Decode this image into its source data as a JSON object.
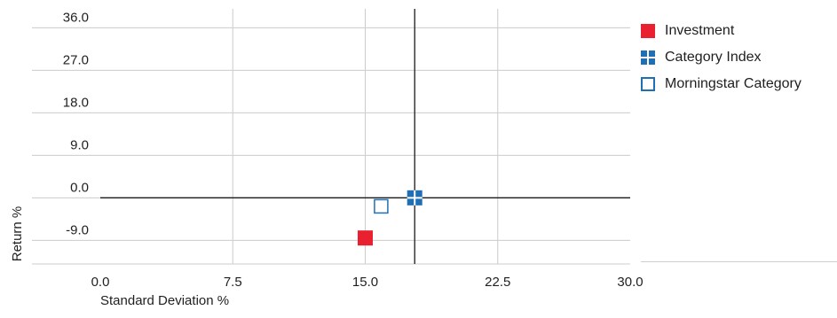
{
  "chart_data": {
    "type": "scatter",
    "title": "",
    "xlabel": "Standard Deviation %",
    "ylabel": "Return %",
    "xlim": [
      0.0,
      30.0
    ],
    "ylim": [
      -14.0,
      40.0
    ],
    "x_ticks": [
      "0.0",
      "7.5",
      "15.0",
      "22.5",
      "30.0"
    ],
    "x_tick_values": [
      0.0,
      7.5,
      15.0,
      22.5,
      30.0
    ],
    "y_ticks": [
      "36.0",
      "27.0",
      "18.0",
      "9.0",
      "0.0",
      "-9.0"
    ],
    "y_tick_values": [
      36.0,
      27.0,
      18.0,
      9.0,
      0.0,
      -9.0
    ],
    "grid": true,
    "crosshair": {
      "x": 17.8,
      "y": 0.0
    },
    "legend_position": "right",
    "series": [
      {
        "name": "Investment",
        "x": 15.0,
        "y": -8.5,
        "marker": "filled-square",
        "color": "#e8202f"
      },
      {
        "name": "Category Index",
        "x": 17.8,
        "y": 0.0,
        "marker": "quartered-square",
        "color": "#1f6fb5"
      },
      {
        "name": "Morningstar Category",
        "x": 15.9,
        "y": -1.8,
        "marker": "hollow-square",
        "color": "#1f6fb5"
      }
    ]
  }
}
